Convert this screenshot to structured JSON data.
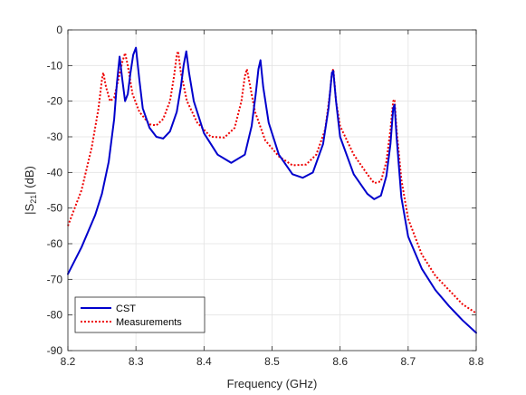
{
  "chart_data": {
    "type": "line",
    "xlabel": "Frequency (GHz)",
    "ylabel_main": "|S",
    "ylabel_sub": "21",
    "ylabel_end": "| (dB)",
    "xlim": [
      8.2,
      8.8
    ],
    "ylim": [
      -90,
      0
    ],
    "xticks": [
      "8.2",
      "8.3",
      "8.4",
      "8.5",
      "8.6",
      "8.7",
      "8.8"
    ],
    "yticks": [
      "0",
      "-10",
      "-20",
      "-30",
      "-40",
      "-50",
      "-60",
      "-70",
      "-80",
      "-90"
    ],
    "grid": true,
    "legend_position": "bottom-left",
    "series": [
      {
        "name": "CST",
        "color": "#0000cc",
        "style": "solid",
        "points": [
          [
            8.2,
            -68.5
          ],
          [
            8.22,
            -61
          ],
          [
            8.24,
            -52
          ],
          [
            8.25,
            -46
          ],
          [
            8.26,
            -37
          ],
          [
            8.268,
            -25
          ],
          [
            8.272,
            -15
          ],
          [
            8.276,
            -7.5
          ],
          [
            8.28,
            -14
          ],
          [
            8.284,
            -20
          ],
          [
            8.288,
            -18
          ],
          [
            8.292,
            -12
          ],
          [
            8.296,
            -7
          ],
          [
            8.3,
            -5
          ],
          [
            8.305,
            -14
          ],
          [
            8.31,
            -22
          ],
          [
            8.32,
            -27.5
          ],
          [
            8.33,
            -30
          ],
          [
            8.34,
            -30.5
          ],
          [
            8.35,
            -28.5
          ],
          [
            8.36,
            -23
          ],
          [
            8.366,
            -16
          ],
          [
            8.37,
            -10
          ],
          [
            8.374,
            -6
          ],
          [
            8.378,
            -12
          ],
          [
            8.385,
            -20
          ],
          [
            8.4,
            -29
          ],
          [
            8.42,
            -35
          ],
          [
            8.44,
            -37.3
          ],
          [
            8.46,
            -35
          ],
          [
            8.47,
            -27
          ],
          [
            8.476,
            -18
          ],
          [
            8.48,
            -11
          ],
          [
            8.483,
            -8.5
          ],
          [
            8.487,
            -16
          ],
          [
            8.495,
            -26
          ],
          [
            8.51,
            -35
          ],
          [
            8.53,
            -40.5
          ],
          [
            8.545,
            -41.5
          ],
          [
            8.56,
            -40
          ],
          [
            8.575,
            -32
          ],
          [
            8.583,
            -22
          ],
          [
            8.588,
            -12
          ],
          [
            8.59,
            -11.5
          ],
          [
            8.594,
            -20
          ],
          [
            8.6,
            -30
          ],
          [
            8.62,
            -40.5
          ],
          [
            8.64,
            -46
          ],
          [
            8.65,
            -47.5
          ],
          [
            8.66,
            -46.5
          ],
          [
            8.668,
            -41
          ],
          [
            8.674,
            -32
          ],
          [
            8.678,
            -22
          ],
          [
            8.68,
            -21
          ],
          [
            8.683,
            -30
          ],
          [
            8.69,
            -47
          ],
          [
            8.7,
            -58
          ],
          [
            8.72,
            -67
          ],
          [
            8.74,
            -73
          ],
          [
            8.76,
            -77.5
          ],
          [
            8.78,
            -81.5
          ],
          [
            8.8,
            -85
          ]
        ]
      },
      {
        "name": "Measurements",
        "color": "#ee0000",
        "style": "dotted",
        "points": [
          [
            8.2,
            -55
          ],
          [
            8.22,
            -45
          ],
          [
            8.235,
            -33
          ],
          [
            8.245,
            -22
          ],
          [
            8.25,
            -14
          ],
          [
            8.252,
            -12
          ],
          [
            8.256,
            -16
          ],
          [
            8.262,
            -20
          ],
          [
            8.268,
            -19
          ],
          [
            8.274,
            -14
          ],
          [
            8.28,
            -9
          ],
          [
            8.284,
            -6.5
          ],
          [
            8.288,
            -10
          ],
          [
            8.295,
            -18
          ],
          [
            8.305,
            -23
          ],
          [
            8.32,
            -26.5
          ],
          [
            8.33,
            -26.8
          ],
          [
            8.34,
            -25
          ],
          [
            8.35,
            -20
          ],
          [
            8.356,
            -13
          ],
          [
            8.36,
            -7
          ],
          [
            8.362,
            -6
          ],
          [
            8.366,
            -12
          ],
          [
            8.375,
            -20
          ],
          [
            8.39,
            -26
          ],
          [
            8.41,
            -30
          ],
          [
            8.43,
            -30.2
          ],
          [
            8.445,
            -27.5
          ],
          [
            8.455,
            -20
          ],
          [
            8.46,
            -13
          ],
          [
            8.463,
            -11
          ],
          [
            8.467,
            -15
          ],
          [
            8.475,
            -23
          ],
          [
            8.49,
            -31
          ],
          [
            8.51,
            -35.5
          ],
          [
            8.53,
            -38
          ],
          [
            8.55,
            -37.8
          ],
          [
            8.565,
            -35
          ],
          [
            8.578,
            -28
          ],
          [
            8.585,
            -18
          ],
          [
            8.588,
            -12
          ],
          [
            8.59,
            -11
          ],
          [
            8.594,
            -20
          ],
          [
            8.6,
            -27
          ],
          [
            8.62,
            -35
          ],
          [
            8.64,
            -40.5
          ],
          [
            8.65,
            -43
          ],
          [
            8.66,
            -42.5
          ],
          [
            8.668,
            -37
          ],
          [
            8.674,
            -28
          ],
          [
            8.678,
            -20
          ],
          [
            8.68,
            -19.5
          ],
          [
            8.683,
            -28
          ],
          [
            8.69,
            -42
          ],
          [
            8.7,
            -53
          ],
          [
            8.72,
            -63
          ],
          [
            8.74,
            -69
          ],
          [
            8.76,
            -73
          ],
          [
            8.78,
            -77
          ],
          [
            8.8,
            -79.5
          ]
        ]
      }
    ]
  }
}
